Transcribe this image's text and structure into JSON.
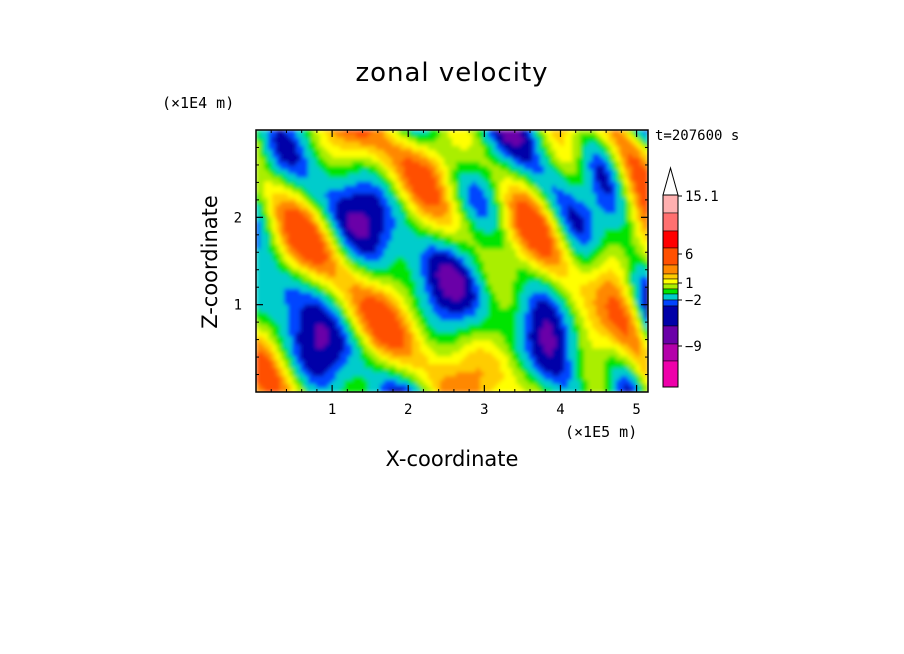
{
  "chart_data": {
    "type": "heatmap",
    "title": "zonal velocity",
    "xlabel": "X-coordinate",
    "ylabel": "Z-coordinate",
    "x_unit_label": "(×1E5 m)",
    "y_unit_label": "(×1E4 m)",
    "time_label": "t=207600 s",
    "xlim": [
      0,
      5.15
    ],
    "ylim": [
      0,
      3.0
    ],
    "x_ticks": [
      1,
      2,
      3,
      4,
      5
    ],
    "y_ticks": [
      1,
      2
    ],
    "x_tick_labels": [
      "1",
      "2",
      "3",
      "4",
      "5"
    ],
    "y_tick_labels": [
      "1",
      "2"
    ],
    "colorbar": {
      "labels": [
        {
          "text": "15.1",
          "level": 15.1
        },
        {
          "text": "6",
          "level": 6
        },
        {
          "text": "1",
          "level": 1
        },
        {
          "text": "−2",
          "level": -2
        },
        {
          "text": "−9",
          "level": -9
        }
      ],
      "colors": [
        "#ee00aa",
        "#b400aa",
        "#6a00a8",
        "#0000a8",
        "#0044ff",
        "#00cccc",
        "#00e400",
        "#aaee00",
        "#ffff00",
        "#ffcc00",
        "#ff8800",
        "#ff5000",
        "#ff0000",
        "#ff7070",
        "#ffb0b0"
      ],
      "extend": "max"
    }
  }
}
